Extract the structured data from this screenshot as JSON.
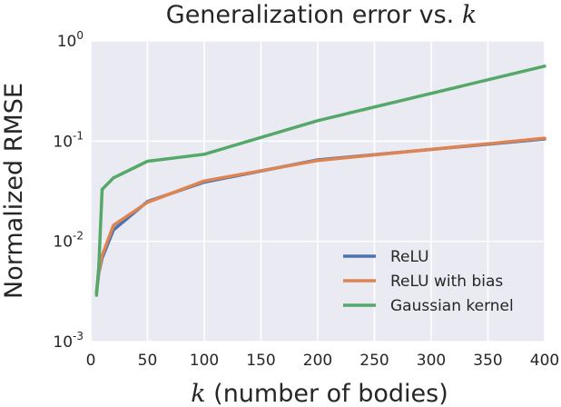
{
  "chart_data": {
    "type": "line",
    "title_prefix": "Generalization error vs. ",
    "title_var": "k",
    "xlabel_var": "k",
    "xlabel_rest": " (number of bodies)",
    "ylabel": "Normalized RMSE",
    "xlim": [
      0,
      400
    ],
    "ylim": [
      0.001,
      1
    ],
    "yscale": "log",
    "grid": true,
    "background": "#EAEAF2",
    "legend_position": "lower-right",
    "xticks": [
      "0",
      "50",
      "100",
      "150",
      "200",
      "250",
      "300",
      "350",
      "400"
    ],
    "yticks": [
      {
        "base": "10",
        "exp": "0"
      },
      {
        "base": "10",
        "exp": "-1"
      },
      {
        "base": "10",
        "exp": "-2"
      },
      {
        "base": "10",
        "exp": "-3"
      }
    ],
    "x": [
      5,
      7,
      10,
      20,
      50,
      100,
      200,
      400
    ],
    "series": [
      {
        "name": "ReLU",
        "color": "#4C72B0",
        "values": [
          0.0031,
          0.0048,
          0.0068,
          0.013,
          0.025,
          0.039,
          0.065,
          0.105
        ]
      },
      {
        "name": "ReLU with bias",
        "color": "#DD8452",
        "values": [
          0.0031,
          0.005,
          0.0072,
          0.0145,
          0.0245,
          0.04,
          0.064,
          0.107
        ]
      },
      {
        "name": "Gaussian kernel",
        "color": "#55A868",
        "values": [
          0.0029,
          0.0055,
          0.033,
          0.043,
          0.063,
          0.074,
          0.16,
          0.56
        ]
      }
    ]
  }
}
